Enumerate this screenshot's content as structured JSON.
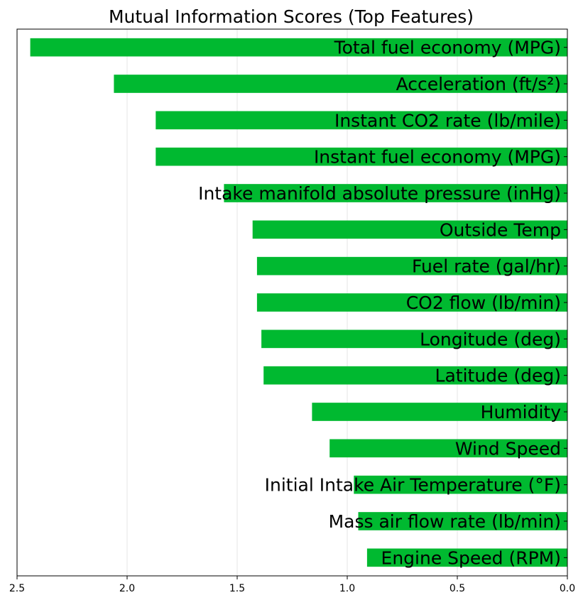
{
  "chart_data": {
    "type": "bar",
    "orientation": "horizontal",
    "title": "Mutual Information Scores (Top Features)",
    "xlabel": "",
    "ylabel": "",
    "x_axis_inverted": true,
    "xlim": [
      2.5,
      0.0
    ],
    "xticks": [
      2.5,
      2.0,
      1.5,
      1.0,
      0.5,
      0.0
    ],
    "xtick_labels": [
      "2.5",
      "2.0",
      "1.5",
      "1.0",
      "0.5",
      "0.0"
    ],
    "grid": "vertical",
    "bar_color": "#00b930",
    "categories": [
      "Total fuel economy (MPG)",
      "Acceleration (ft/s²)",
      "Instant CO2 rate (lb/mile)",
      "Instant fuel economy (MPG)",
      "Intake manifold absolute pressure (inHg)",
      "Outside Temp",
      "Fuel rate (gal/hr)",
      "CO2 flow (lb/min)",
      "Longitude (deg)",
      "Latitude (deg)",
      "Humidity",
      "Wind Speed",
      "Initial Intake Air Temperature (°F)",
      "Mass air flow rate (lb/min)",
      "Engine Speed (RPM)"
    ],
    "values": [
      2.44,
      2.06,
      1.87,
      1.87,
      1.56,
      1.43,
      1.41,
      1.41,
      1.39,
      1.38,
      1.16,
      1.08,
      0.97,
      0.95,
      0.91
    ]
  }
}
